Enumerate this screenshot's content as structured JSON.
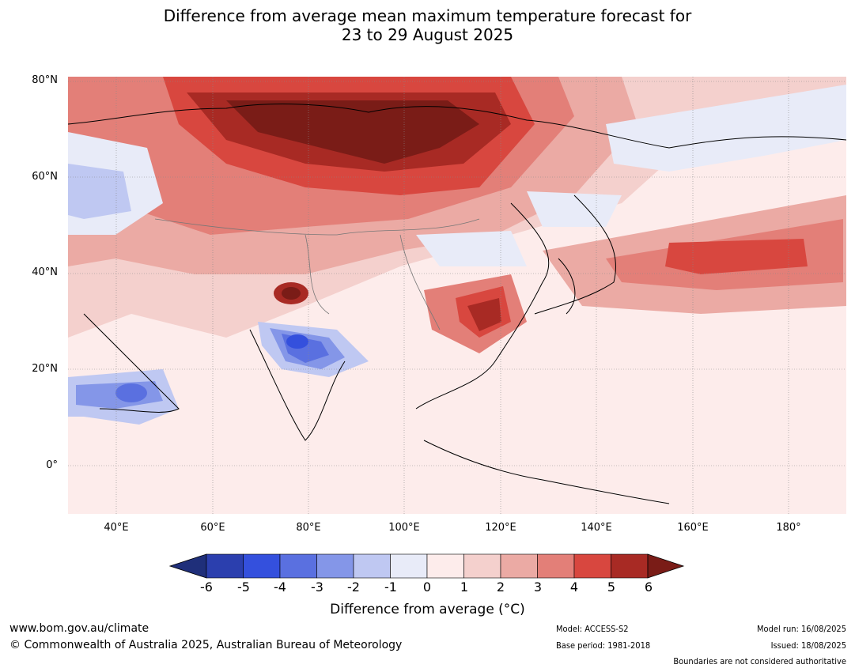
{
  "title": {
    "line1": "Difference from average mean maximum temperature forecast for",
    "line2": "23 to 29 August 2025"
  },
  "map": {
    "lat_labels": [
      "80°N",
      "60°N",
      "40°N",
      "20°N",
      "0°"
    ],
    "lon_labels": [
      "40°E",
      "60°E",
      "80°E",
      "100°E",
      "120°E",
      "140°E",
      "160°E",
      "180°"
    ],
    "neutral_color": "#fdeceb"
  },
  "colorbar": {
    "ticks": [
      "-6",
      "-5",
      "-4",
      "-3",
      "-2",
      "-1",
      "0",
      "1",
      "2",
      "3",
      "4",
      "5",
      "6"
    ],
    "colors": [
      "#1f2f7a",
      "#2b3fae",
      "#3450dd",
      "#5a70e0",
      "#8496e8",
      "#bfc8f2",
      "#e8ebf8",
      "#fdeceb",
      "#f4d0cd",
      "#ebaaa4",
      "#e37f78",
      "#d8473f",
      "#a82a24",
      "#7a1c17"
    ],
    "label": "Difference from average (°C)"
  },
  "footer": {
    "url": "www.bom.gov.au/climate",
    "copyright": "© Commonwealth of Australia 2025, Australian Bureau of Meteorology",
    "model": "Model: ACCESS-S2",
    "base_period": "Base period: 1981-2018",
    "model_run": "Model run: 16/08/2025",
    "issued": "Issued: 18/08/2025",
    "disclaimer": "Boundaries are not considered authoritative"
  }
}
